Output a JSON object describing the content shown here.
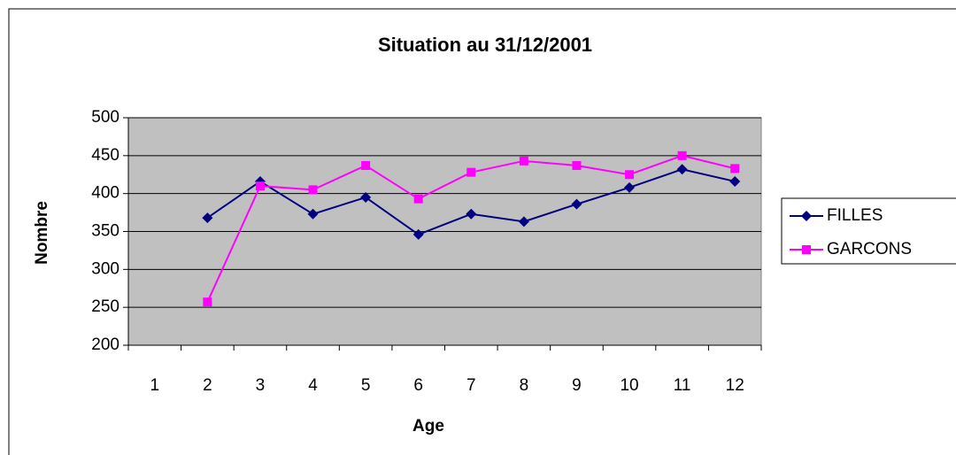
{
  "chart_data": {
    "type": "line",
    "title": "Situation au 31/12/2001",
    "x_label": "Age",
    "y_label": "Nombre",
    "categories": [
      "1",
      "2",
      "3",
      "4",
      "5",
      "6",
      "7",
      "8",
      "9",
      "10",
      "11",
      "12"
    ],
    "series": [
      {
        "name": "FILLES",
        "color": "#000080",
        "marker": "diamond",
        "values": [
          null,
          368,
          416,
          373,
          395,
          346,
          373,
          363,
          386,
          408,
          432,
          416
        ]
      },
      {
        "name": "GARCONS",
        "color": "#ff00ff",
        "marker": "square",
        "values": [
          null,
          257,
          410,
          405,
          437,
          393,
          428,
          443,
          437,
          425,
          450,
          433
        ]
      }
    ],
    "ylim": [
      200,
      500
    ],
    "yticks": [
      200,
      250,
      300,
      350,
      400,
      450,
      500
    ],
    "grid": true,
    "legend": "right"
  }
}
